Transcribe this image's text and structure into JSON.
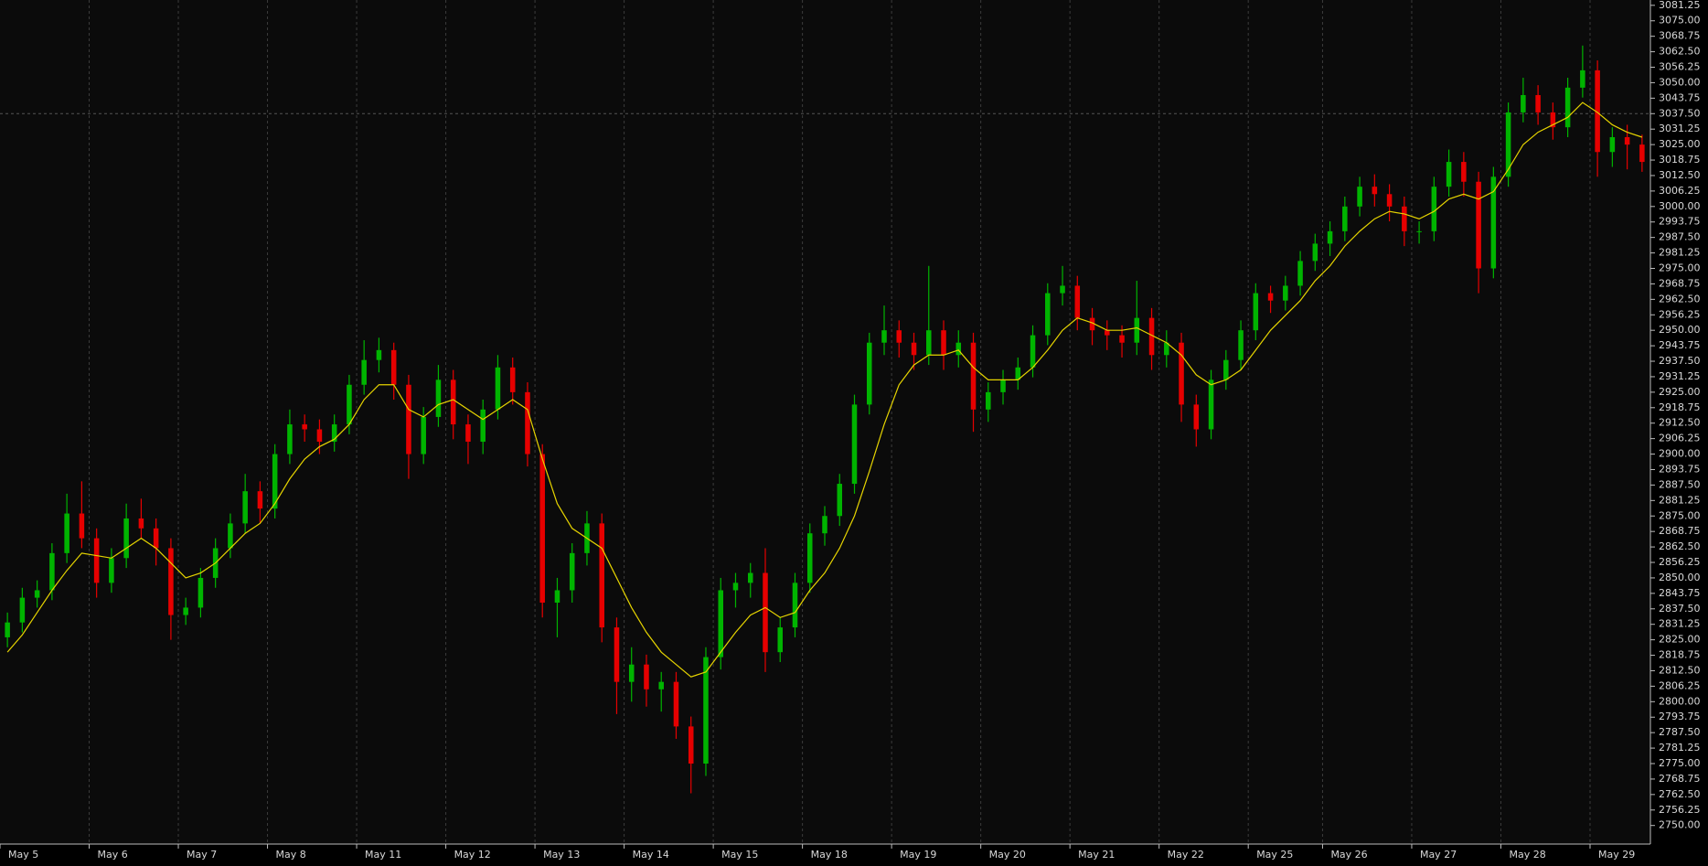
{
  "chart_data": {
    "type": "candlestick",
    "categories": [
      "May 5",
      null,
      null,
      null,
      null,
      null,
      "May 6",
      null,
      null,
      null,
      null,
      null,
      "May 7",
      null,
      null,
      null,
      null,
      null,
      "May 8",
      null,
      null,
      null,
      null,
      null,
      "May 11",
      null,
      null,
      null,
      null,
      null,
      "May 12",
      null,
      null,
      null,
      null,
      null,
      "May 13",
      null,
      null,
      null,
      null,
      null,
      "May 14",
      null,
      null,
      null,
      null,
      null,
      "May 15",
      null,
      null,
      null,
      null,
      null,
      "May 18",
      null,
      null,
      null,
      null,
      null,
      "May 19",
      null,
      null,
      null,
      null,
      null,
      "May 20",
      null,
      null,
      null,
      null,
      null,
      "May 21",
      null,
      null,
      null,
      null,
      null,
      "May 22",
      null,
      null,
      null,
      null,
      null,
      "May 25",
      null,
      null,
      null,
      null,
      "May 26",
      null,
      null,
      null,
      null,
      null,
      "May 27",
      null,
      null,
      null,
      null,
      null,
      "May 28",
      null,
      null,
      null,
      null,
      null,
      "May 29",
      null,
      null,
      null
    ],
    "open": [
      2826,
      2832,
      2842,
      2845,
      2860,
      2876,
      2866,
      2848,
      2858,
      2874,
      2870,
      2862,
      2835,
      2838,
      2850,
      2862,
      2872,
      2885,
      2878,
      2900,
      2912,
      2910,
      2905,
      2912,
      2928,
      2938,
      2942,
      2928,
      2900,
      2915,
      2930,
      2912,
      2905,
      2918,
      2935,
      2925,
      2900,
      2840,
      2845,
      2860,
      2872,
      2830,
      2808,
      2815,
      2805,
      2808,
      2790,
      2775,
      2818,
      2845,
      2848,
      2852,
      2820,
      2830,
      2848,
      2868,
      2875,
      2888,
      2920,
      2945,
      2950,
      2945,
      2940,
      2950,
      2940,
      2945,
      2918,
      2925,
      2930,
      2935,
      2948,
      2965,
      2968,
      2955,
      2950,
      2948,
      2945,
      2955,
      2940,
      2945,
      2920,
      2910,
      2930,
      2938,
      2950,
      2965,
      2962,
      2968,
      2978,
      2985,
      2990,
      3000,
      3008,
      3005,
      3000,
      2990,
      2990,
      3008,
      3018,
      3010,
      2975,
      3012,
      3038,
      3045,
      3038,
      3032,
      3048,
      3055,
      3022,
      3028,
      3025
    ],
    "high": [
      2836,
      2846,
      2849,
      2864,
      2884,
      2889,
      2870,
      2862,
      2880,
      2882,
      2874,
      2866,
      2842,
      2854,
      2866,
      2876,
      2892,
      2889,
      2904,
      2918,
      2916,
      2914,
      2916,
      2932,
      2946,
      2947,
      2945,
      2932,
      2919,
      2936,
      2934,
      2916,
      2922,
      2940,
      2939,
      2929,
      2904,
      2850,
      2864,
      2877,
      2876,
      2834,
      2822,
      2819,
      2812,
      2812,
      2794,
      2822,
      2850,
      2852,
      2856,
      2862,
      2834,
      2852,
      2872,
      2879,
      2892,
      2924,
      2949,
      2960,
      2954,
      2949,
      2976,
      2954,
      2950,
      2949,
      2929,
      2934,
      2939,
      2952,
      2969,
      2976,
      2972,
      2959,
      2954,
      2952,
      2970,
      2959,
      2950,
      2949,
      2924,
      2934,
      2942,
      2954,
      2969,
      2968,
      2972,
      2982,
      2989,
      2994,
      3004,
      3012,
      3013,
      3009,
      3004,
      2994,
      3012,
      3023,
      3022,
      3014,
      3016,
      3042,
      3052,
      3049,
      3042,
      3052,
      3065,
      3059,
      3032,
      3033,
      3029
    ],
    "low": [
      2822,
      2828,
      2838,
      2841,
      2856,
      2862,
      2842,
      2844,
      2854,
      2866,
      2855,
      2825,
      2831,
      2834,
      2846,
      2858,
      2868,
      2872,
      2874,
      2896,
      2905,
      2900,
      2901,
      2908,
      2924,
      2933,
      2922,
      2890,
      2896,
      2911,
      2906,
      2896,
      2900,
      2914,
      2920,
      2895,
      2834,
      2826,
      2840,
      2855,
      2824,
      2795,
      2800,
      2798,
      2796,
      2785,
      2763,
      2770,
      2813,
      2838,
      2842,
      2812,
      2816,
      2826,
      2844,
      2863,
      2871,
      2884,
      2916,
      2940,
      2939,
      2934,
      2936,
      2934,
      2935,
      2909,
      2913,
      2920,
      2926,
      2931,
      2944,
      2960,
      2950,
      2944,
      2942,
      2939,
      2940,
      2934,
      2935,
      2913,
      2903,
      2906,
      2926,
      2934,
      2946,
      2957,
      2958,
      2964,
      2974,
      2980,
      2986,
      2996,
      3000,
      2994,
      2984,
      2985,
      2986,
      3004,
      3004,
      2965,
      2971,
      3008,
      3034,
      3033,
      3027,
      3028,
      3044,
      3012,
      3016,
      3015,
      3014
    ],
    "close": [
      2832,
      2842,
      2845,
      2860,
      2876,
      2866,
      2848,
      2858,
      2874,
      2870,
      2862,
      2835,
      2838,
      2850,
      2862,
      2872,
      2885,
      2878,
      2900,
      2912,
      2910,
      2905,
      2912,
      2928,
      2938,
      2942,
      2928,
      2900,
      2915,
      2930,
      2912,
      2905,
      2918,
      2935,
      2925,
      2900,
      2840,
      2845,
      2860,
      2872,
      2830,
      2808,
      2815,
      2805,
      2808,
      2790,
      2775,
      2818,
      2845,
      2848,
      2852,
      2820,
      2830,
      2848,
      2868,
      2875,
      2888,
      2920,
      2945,
      2950,
      2945,
      2940,
      2950,
      2940,
      2945,
      2918,
      2925,
      2930,
      2935,
      2948,
      2965,
      2968,
      2955,
      2950,
      2948,
      2945,
      2955,
      2940,
      2945,
      2920,
      2910,
      2930,
      2938,
      2950,
      2965,
      2962,
      2968,
      2978,
      2985,
      2990,
      3000,
      3008,
      3005,
      3000,
      2990,
      2990,
      3008,
      3018,
      3010,
      2975,
      3012,
      3038,
      3045,
      3038,
      3032,
      3048,
      3055,
      3022,
      3028,
      3025,
      3018
    ],
    "up_color": "#00b400",
    "down_color": "#e60000",
    "moving_average": {
      "color": "#e6d400",
      "values": [
        2820,
        2827,
        2836,
        2845,
        2853,
        2860,
        2859,
        2858,
        2862,
        2866,
        2862,
        2856,
        2850,
        2852,
        2856,
        2862,
        2868,
        2872,
        2880,
        2890,
        2898,
        2903,
        2906,
        2912,
        2922,
        2928,
        2928,
        2918,
        2915,
        2920,
        2922,
        2918,
        2914,
        2918,
        2922,
        2918,
        2898,
        2880,
        2870,
        2866,
        2862,
        2850,
        2838,
        2828,
        2820,
        2815,
        2810,
        2812,
        2820,
        2828,
        2835,
        2838,
        2834,
        2836,
        2845,
        2852,
        2862,
        2875,
        2893,
        2912,
        2928,
        2936,
        2940,
        2940,
        2942,
        2935,
        2930,
        2930,
        2930,
        2935,
        2942,
        2950,
        2955,
        2953,
        2950,
        2950,
        2951,
        2948,
        2945,
        2940,
        2932,
        2928,
        2930,
        2934,
        2942,
        2950,
        2956,
        2962,
        2970,
        2976,
        2984,
        2990,
        2995,
        2998,
        2997,
        2995,
        2998,
        3003,
        3005,
        3003,
        3006,
        3015,
        3025,
        3030,
        3033,
        3036,
        3042,
        3038,
        3033,
        3030,
        3028
      ]
    },
    "price_line": 3037.5,
    "ylim": [
      2742.5,
      3083.4
    ],
    "yticks": [
      {
        "value": 2750,
        "label": "2750.00"
      },
      2756.25,
      {
        "value": 2762.5,
        "label": "2762.50"
      },
      2768.75,
      {
        "value": 2775,
        "label": "2775.00"
      },
      2781.25,
      {
        "value": 2787.5,
        "label": "2787.50"
      },
      2793.75,
      {
        "value": 2800,
        "label": "2800.00"
      },
      2806.25,
      {
        "value": 2812.5,
        "label": "2812.50"
      },
      2818.75,
      {
        "value": 2825,
        "label": "2825.00"
      },
      2831.25,
      {
        "value": 2837.5,
        "label": "2837.50"
      },
      2843.75,
      {
        "value": 2850,
        "label": "2850.00"
      },
      2856.25,
      {
        "value": 2862.5,
        "label": "2862.50"
      },
      2868.75,
      {
        "value": 2875,
        "label": "2875.00"
      },
      2881.25,
      {
        "value": 2887.5,
        "label": "2887.50"
      },
      2893.75,
      {
        "value": 2900,
        "label": "2900.00"
      },
      2906.25,
      {
        "value": 2912.5,
        "label": "2912.50"
      },
      2918.75,
      {
        "value": 2925,
        "label": "2925.00"
      },
      2931.25,
      {
        "value": 2937.5,
        "label": "2937.50"
      },
      2943.75,
      {
        "value": 2950,
        "label": "2950.00"
      },
      2956.25,
      {
        "value": 2962.5,
        "label": "2962.50"
      },
      2968.75,
      {
        "value": 2975,
        "label": "2975.00"
      },
      2981.25,
      {
        "value": 2987.5,
        "label": "2987.50"
      },
      2993.75,
      {
        "value": 3000,
        "label": "3000.00"
      },
      3006.25,
      {
        "value": 3012.5,
        "label": "3012.50"
      },
      3018.75,
      {
        "value": 3025,
        "label": "3025.00"
      },
      3031.25,
      {
        "value": 3037.5,
        "label": "3037.50"
      },
      3043.75,
      {
        "value": 3050,
        "label": "3050.00"
      },
      3056.25,
      {
        "value": 3062.5,
        "label": "3062.50"
      },
      3068.75,
      {
        "value": 3075,
        "label": "3075.00"
      },
      3081.25
    ],
    "grid": true
  }
}
